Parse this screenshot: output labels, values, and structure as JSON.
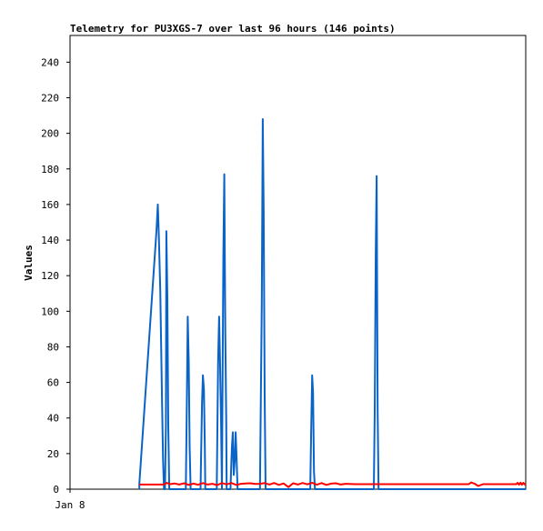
{
  "chart_data": {
    "type": "line",
    "title": "Telemetry for PU3XGS-7 over last 96 hours (146 points)",
    "xlabel": "",
    "ylabel": "Values",
    "x_tick_labels": [
      "Jan 8"
    ],
    "y_ticks": [
      0,
      20,
      40,
      60,
      80,
      100,
      120,
      140,
      160,
      180,
      200,
      220,
      240
    ],
    "ylim": [
      0,
      255
    ],
    "x_range_hours": [
      0,
      96
    ],
    "grid": false,
    "legend": "none",
    "colors": {
      "blue_series": "#0a64c8",
      "red_series": "#ff0000",
      "axis": "#000000"
    },
    "series": [
      {
        "color_key": "blue_series",
        "points": [
          [
            14.6,
            0
          ],
          [
            14.6,
            3
          ],
          [
            18.2,
            145
          ],
          [
            18.5,
            160
          ],
          [
            18.7,
            143
          ],
          [
            19.0,
            112
          ],
          [
            19.2,
            80
          ],
          [
            19.4,
            48
          ],
          [
            19.6,
            16
          ],
          [
            19.8,
            0
          ],
          [
            20.0,
            0
          ],
          [
            20.2,
            36
          ],
          [
            20.3,
            145
          ],
          [
            20.5,
            108
          ],
          [
            20.7,
            36
          ],
          [
            20.9,
            0
          ],
          [
            24.4,
            0
          ],
          [
            24.6,
            48
          ],
          [
            24.8,
            97
          ],
          [
            25.0,
            72
          ],
          [
            25.2,
            24
          ],
          [
            25.4,
            0
          ],
          [
            27.5,
            0
          ],
          [
            27.6,
            16
          ],
          [
            27.8,
            48
          ],
          [
            28.0,
            64
          ],
          [
            28.2,
            56
          ],
          [
            28.4,
            24
          ],
          [
            28.5,
            0
          ],
          [
            30.9,
            0
          ],
          [
            31.0,
            24
          ],
          [
            31.2,
            72
          ],
          [
            31.4,
            97
          ],
          [
            31.6,
            72
          ],
          [
            31.8,
            40
          ],
          [
            32.0,
            0
          ],
          [
            32.0,
            0
          ],
          [
            32.1,
            44
          ],
          [
            32.3,
            133
          ],
          [
            32.5,
            177
          ],
          [
            32.7,
            88
          ],
          [
            32.9,
            40
          ],
          [
            33.0,
            0
          ],
          [
            33.8,
            0
          ],
          [
            33.9,
            8
          ],
          [
            34.1,
            24
          ],
          [
            34.3,
            32
          ],
          [
            34.5,
            8
          ],
          [
            34.7,
            16
          ],
          [
            34.9,
            32
          ],
          [
            35.1,
            16
          ],
          [
            35.3,
            0
          ],
          [
            40.0,
            0
          ],
          [
            40.2,
            52
          ],
          [
            40.4,
            104
          ],
          [
            40.6,
            208
          ],
          [
            40.8,
            156
          ],
          [
            41.0,
            52
          ],
          [
            41.2,
            0
          ],
          [
            50.6,
            0
          ],
          [
            50.8,
            32
          ],
          [
            51.0,
            64
          ],
          [
            51.2,
            54
          ],
          [
            51.4,
            10
          ],
          [
            51.6,
            0
          ],
          [
            64.0,
            0
          ],
          [
            64.2,
            44
          ],
          [
            64.4,
            132
          ],
          [
            64.6,
            176
          ],
          [
            64.8,
            44
          ],
          [
            65.0,
            0
          ],
          [
            96,
            0
          ]
        ]
      },
      {
        "color_key": "red_series",
        "points": [
          [
            14.6,
            2.6
          ],
          [
            19.8,
            2.6
          ],
          [
            20.4,
            3.6
          ],
          [
            21.0,
            2.8
          ],
          [
            22.0,
            3.2
          ],
          [
            23.0,
            2.6
          ],
          [
            24.0,
            3.3
          ],
          [
            25.0,
            2.4
          ],
          [
            26.0,
            3.1
          ],
          [
            27.0,
            2.5
          ],
          [
            28.0,
            3.4
          ],
          [
            29.0,
            2.6
          ],
          [
            30.0,
            3.0
          ],
          [
            31.0,
            2.3
          ],
          [
            32.0,
            3.4
          ],
          [
            33.0,
            2.7
          ],
          [
            34.0,
            3.5
          ],
          [
            35.0,
            2.4
          ],
          [
            36.0,
            3.0
          ],
          [
            37.0,
            3.2
          ],
          [
            38.0,
            3.3
          ],
          [
            39.0,
            2.9
          ],
          [
            40.0,
            3.0
          ],
          [
            41.0,
            3.4
          ],
          [
            42.0,
            2.6
          ],
          [
            43.0,
            3.5
          ],
          [
            44.0,
            2.4
          ],
          [
            45.0,
            3.2
          ],
          [
            46.0,
            1.2
          ],
          [
            47.0,
            3.3
          ],
          [
            48.0,
            2.6
          ],
          [
            49.0,
            3.5
          ],
          [
            50.0,
            2.7
          ],
          [
            51.0,
            3.6
          ],
          [
            52.0,
            2.5
          ],
          [
            53.0,
            3.4
          ],
          [
            54.0,
            2.4
          ],
          [
            55.0,
            3.1
          ],
          [
            56.0,
            3.3
          ],
          [
            57.0,
            2.6
          ],
          [
            58.0,
            3.0
          ],
          [
            60.0,
            2.8
          ],
          [
            62.0,
            2.8
          ],
          [
            66.0,
            2.8
          ],
          [
            70.0,
            2.8
          ],
          [
            75.0,
            2.8
          ],
          [
            80.0,
            2.8
          ],
          [
            84.0,
            2.8
          ],
          [
            84.5,
            3.8
          ],
          [
            85.2,
            3.1
          ],
          [
            86.0,
            1.8
          ],
          [
            87.0,
            2.8
          ],
          [
            90.0,
            2.8
          ],
          [
            93.0,
            2.8
          ],
          [
            94.0,
            2.8
          ],
          [
            94.3,
            3.6
          ],
          [
            94.6,
            2.5
          ],
          [
            94.9,
            3.7
          ],
          [
            95.2,
            2.5
          ],
          [
            95.5,
            3.6
          ],
          [
            95.8,
            2.6
          ],
          [
            96.0,
            3.0
          ]
        ]
      }
    ]
  }
}
